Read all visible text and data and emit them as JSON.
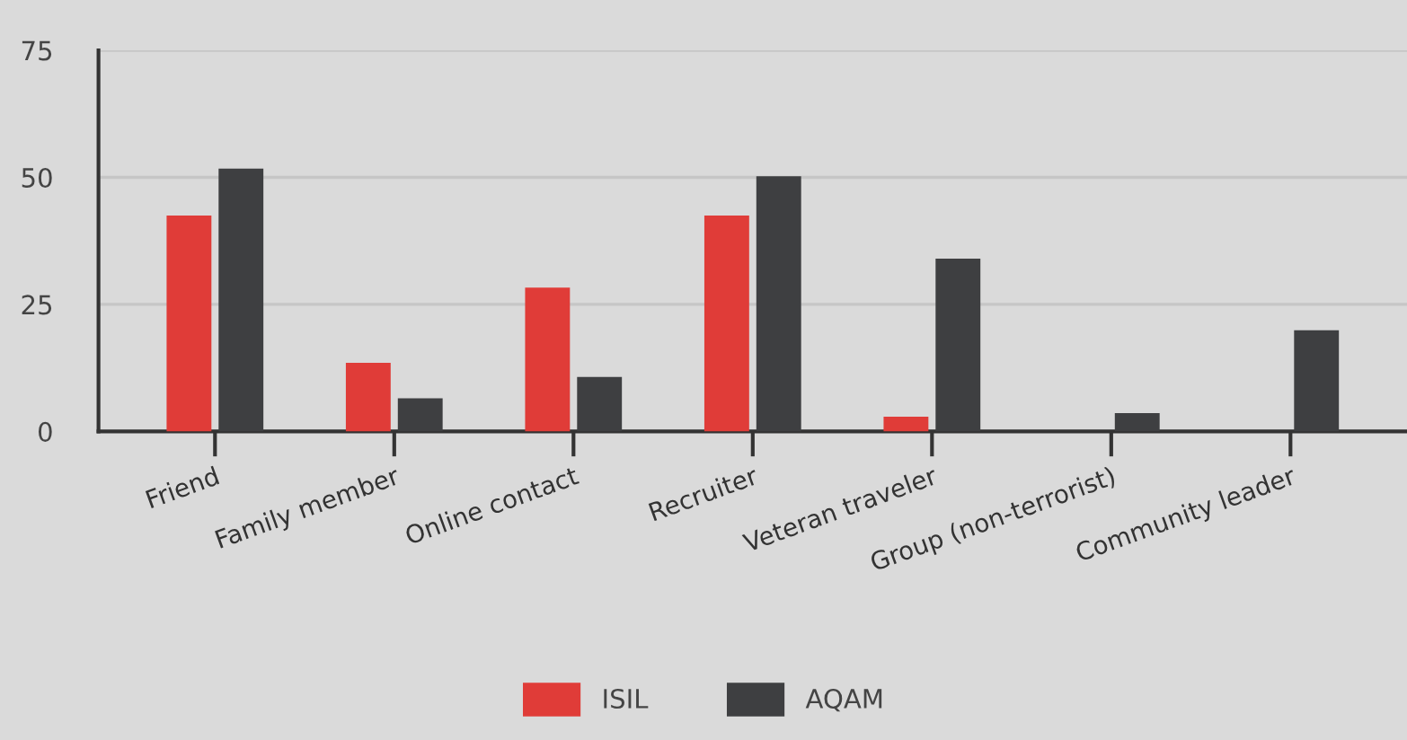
{
  "chart_data": {
    "type": "bar",
    "categories": [
      "Friend",
      "Family member",
      "Online contact",
      "Recruiter",
      "Veteran traveler",
      "Group (non-terrorist)",
      "Community leader"
    ],
    "series": [
      {
        "name": "ISIL",
        "color": "#e03c38",
        "values": [
          42.5,
          13.5,
          28.3,
          42.5,
          2.9,
          0,
          0
        ]
      },
      {
        "name": "AQAM",
        "color": "#3e3f41",
        "values": [
          51.7,
          6.5,
          10.7,
          50.2,
          34,
          3.6,
          19.9
        ]
      }
    ],
    "ylim": [
      0,
      75
    ],
    "yticks": [
      0,
      25,
      50,
      75
    ],
    "grid": "y",
    "legend": "bottom"
  }
}
